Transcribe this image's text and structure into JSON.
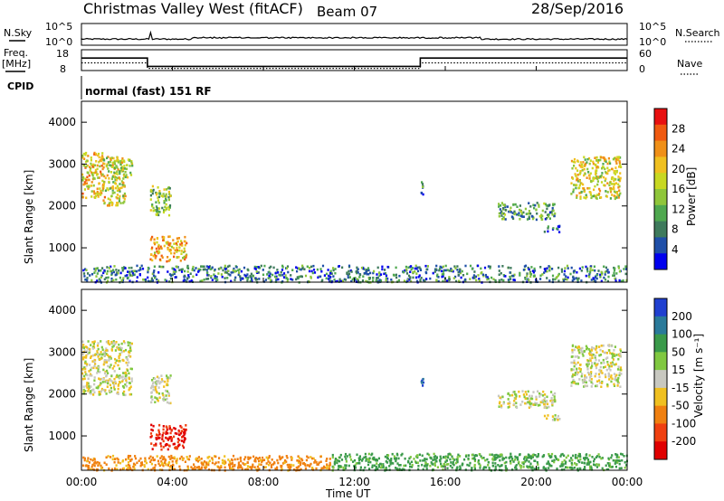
{
  "header": {
    "station": "Christmas Valley West (fitACF)",
    "beam": "Beam 07",
    "date": "28/Sep/2016"
  },
  "top_panels": {
    "nsky_label": "N.Sky",
    "nsky_ticks": [
      "10^5",
      "10^0"
    ],
    "nsearch_label": "N.Search",
    "nsearch_ticks": [
      "10^5",
      "10^0"
    ],
    "freq_label_1": "Freq.",
    "freq_label_2": "[MHz]",
    "freq_ticks": [
      "18",
      "8"
    ],
    "nave_label": "Nave",
    "nave_ticks": [
      "60",
      "0"
    ],
    "cpid_label": "CPID",
    "cpid_text": "normal (fast) 151 RF"
  },
  "x_axis": {
    "title": "Time UT",
    "ticks": [
      "00:00",
      "04:00",
      "08:00",
      "12:00",
      "16:00",
      "20:00",
      "00:00"
    ],
    "hours": [
      0,
      4,
      8,
      12,
      16,
      20,
      24
    ]
  },
  "power_panel": {
    "ylabel": "Slant Range [km]",
    "yticks": [
      "4000",
      "3000",
      "2000",
      "1000"
    ],
    "colorbar_label": "Power [dB]",
    "colorbar_ticks": [
      "28",
      "24",
      "20",
      "16",
      "12",
      "8",
      "4"
    ],
    "colors": [
      "#0000ee",
      "#1f4fa8",
      "#3e7a5c",
      "#4fa84f",
      "#8fc63a",
      "#c8d822",
      "#f0c020",
      "#f09018",
      "#f05a10",
      "#e81010"
    ]
  },
  "velocity_panel": {
    "ylabel": "Slant Range [km]",
    "yticks": [
      "4000",
      "3000",
      "2000",
      "1000"
    ],
    "colorbar_label": "Velocity [m s⁻¹]",
    "colorbar_ticks": [
      "200",
      "100",
      "50",
      "15",
      "-15",
      "-50",
      "-100",
      "-200"
    ],
    "colors": [
      "#2040d0",
      "#2a7a9a",
      "#3a9a4a",
      "#80c840",
      "#c8c8c0",
      "#f0c020",
      "#f08010",
      "#f04010",
      "#e00000"
    ]
  },
  "chart_data": {
    "type": "heatmap",
    "x_unit": "hours UT",
    "xlim": [
      0,
      24
    ],
    "ylim": [
      180,
      4500
    ],
    "nsky": {
      "description_hours": [
        0,
        24
      ],
      "level": "near 10^0 to 10^1"
    },
    "freq_mhz": [
      {
        "from": 0,
        "to": 2.9,
        "value": 14
      },
      {
        "from": 2.9,
        "to": 14.9,
        "value": 10
      },
      {
        "from": 14.9,
        "to": 24,
        "value": 14
      }
    ],
    "nave": [
      {
        "from": 0,
        "to": 2.9,
        "value": 30
      },
      {
        "from": 2.9,
        "to": 14.9,
        "value": 14
      },
      {
        "from": 14.9,
        "to": 24,
        "value": 30
      }
    ],
    "power_regions": [
      {
        "t0": 0.0,
        "t1": 1.0,
        "r0": 2200,
        "r1": 3300,
        "db": 20
      },
      {
        "t0": 0.9,
        "t1": 1.9,
        "r0": 2000,
        "r1": 3200,
        "db": 18
      },
      {
        "t0": 1.4,
        "t1": 2.2,
        "r0": 2700,
        "r1": 3150,
        "db": 16
      },
      {
        "t0": 3.0,
        "t1": 3.9,
        "r0": 1800,
        "r1": 2500,
        "db": 14
      },
      {
        "t0": 3.0,
        "t1": 4.6,
        "r0": 700,
        "r1": 1300,
        "db": 22
      },
      {
        "t0": 14.9,
        "t1": 15.0,
        "r0": 2300,
        "r1": 2600,
        "db": 8
      },
      {
        "t0": 18.3,
        "t1": 20.8,
        "r0": 1700,
        "r1": 2100,
        "db": 10
      },
      {
        "t0": 20.3,
        "t1": 21.0,
        "r0": 1400,
        "r1": 1550,
        "db": 6
      },
      {
        "t0": 21.5,
        "t1": 23.7,
        "r0": 2200,
        "r1": 3200,
        "db": 18
      },
      {
        "t0": 0.0,
        "t1": 24.0,
        "r0": 200,
        "r1": 600,
        "db": 8
      }
    ],
    "velocity_regions": [
      {
        "t0": 0.0,
        "t1": 2.2,
        "r0": 2000,
        "r1": 3300,
        "v": 0
      },
      {
        "t0": 3.0,
        "t1": 3.9,
        "r0": 1800,
        "r1": 2500,
        "v": 0
      },
      {
        "t0": 3.0,
        "t1": 4.6,
        "r0": 700,
        "r1": 1300,
        "v": -150
      },
      {
        "t0": 14.9,
        "t1": 15.0,
        "r0": 2200,
        "r1": 2500,
        "v": 150
      },
      {
        "t0": 18.3,
        "t1": 20.8,
        "r0": 1700,
        "r1": 2100,
        "v": 0
      },
      {
        "t0": 20.3,
        "t1": 21.0,
        "r0": 1400,
        "r1": 1550,
        "v": 0
      },
      {
        "t0": 21.5,
        "t1": 23.7,
        "r0": 2200,
        "r1": 3200,
        "v": 0
      },
      {
        "t0": 0.0,
        "t1": 11.0,
        "r0": 200,
        "r1": 550,
        "v": -40
      },
      {
        "t0": 11.0,
        "t1": 24.0,
        "r0": 200,
        "r1": 600,
        "v": 40
      }
    ]
  }
}
